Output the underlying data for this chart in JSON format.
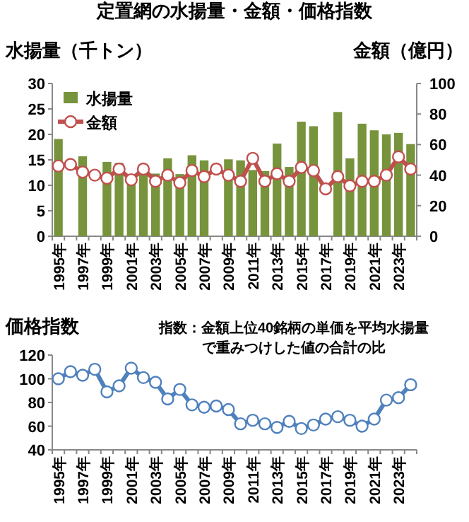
{
  "chart_data": [
    {
      "type": "bar",
      "title": "定置網の水揚量・金額・価格指数",
      "ylabel": "水揚量（千トン）",
      "y2label": "金額（億円）",
      "categories": [
        "1995年",
        null,
        "1997年",
        null,
        "1999年",
        null,
        "2001年",
        null,
        "2003年",
        null,
        "2005年",
        null,
        "2007年",
        null,
        "2009年",
        null,
        "2011年",
        null,
        "2013年",
        null,
        "2015年",
        null,
        "2017年",
        null,
        "2019年",
        null,
        "2021年",
        null,
        "2023年",
        null
      ],
      "series": [
        {
          "name": "水揚量",
          "type": "bar",
          "color": "#77933c",
          "values": [
            19.1,
            null,
            15.7,
            null,
            14.6,
            14.4,
            10.8,
            13.0,
            12.3,
            15.3,
            12.2,
            15.9,
            14.9,
            null,
            15.1,
            14.9,
            13.0,
            12.8,
            18.2,
            13.6,
            22.5,
            21.6,
            null,
            24.4,
            15.3,
            22.1,
            20.8,
            20.0,
            20.3,
            18.1
          ]
        },
        {
          "name": "金額",
          "type": "line",
          "axis": "y2",
          "color": "#c0504d",
          "marker": "circle",
          "values": [
            46,
            47,
            42,
            40,
            38,
            44,
            37,
            44,
            36,
            40,
            35,
            43,
            39,
            44,
            40,
            36,
            51,
            36,
            41,
            36,
            45,
            43,
            31,
            39,
            33,
            36,
            36,
            40,
            52,
            44
          ]
        }
      ],
      "ylim": [
        0,
        30
      ],
      "yticks": [
        0,
        5,
        10,
        15,
        20,
        25,
        30
      ],
      "y2lim": [
        0,
        100
      ],
      "y2ticks": [
        0,
        20,
        40,
        60,
        80,
        100
      ],
      "legend": "top left"
    },
    {
      "type": "line",
      "ylabel": "価格指数",
      "annotations": [
        "指数：金額上位40銘柄の単価を平均水揚量で重みつけした値の合計の比"
      ],
      "categories": [
        "1995年",
        null,
        "1997年",
        null,
        "1999年",
        null,
        "2001年",
        null,
        "2003年",
        null,
        "2005年",
        null,
        "2007年",
        null,
        "2009年",
        null,
        "2011年",
        null,
        "2013年",
        null,
        "2015年",
        null,
        "2017年",
        null,
        "2019年",
        null,
        "2021年",
        null,
        "2023年",
        null
      ],
      "series": [
        {
          "color": "#4f81bd",
          "values": [
            100,
            106,
            103,
            108,
            89,
            94,
            109,
            101,
            97,
            83,
            91,
            78,
            76,
            77,
            74,
            62,
            65,
            62,
            59,
            64,
            58,
            61,
            66,
            68,
            65,
            60,
            66,
            82,
            84,
            95
          ]
        }
      ],
      "marker": "circle",
      "ylim": [
        40,
        120
      ],
      "yticks": [
        40,
        60,
        80,
        100,
        120
      ]
    }
  ]
}
